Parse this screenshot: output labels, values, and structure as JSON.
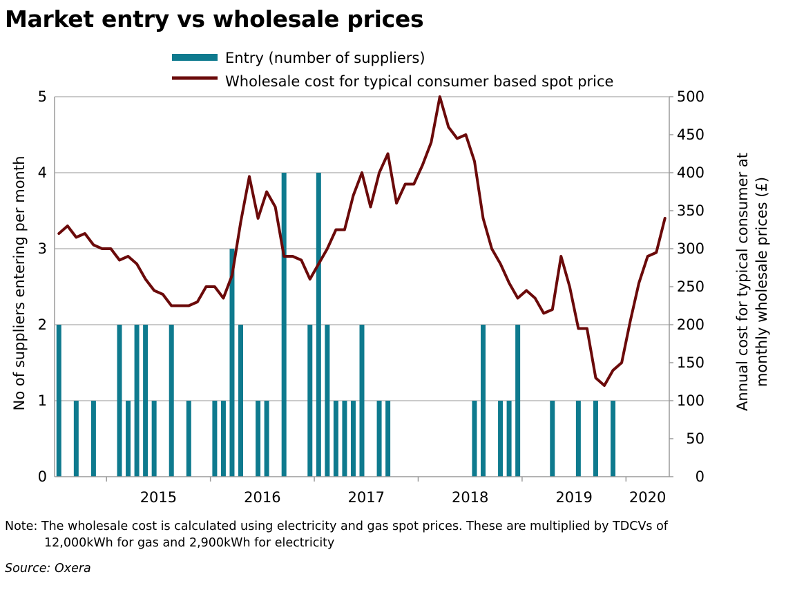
{
  "title": "Market entry vs wholesale prices",
  "note": {
    "label": "Note",
    "line1": ": The wholesale cost is calculated using electricity and gas spot prices. These are multiplied by TDCVs of",
    "line2": "12,000kWh for gas and 2,900kWh for electricity"
  },
  "source": "Source: Oxera",
  "colors": {
    "bars": "#0e7a8e",
    "line": "#6b0a0a",
    "grid": "#b8b8b8"
  },
  "chart_data": {
    "type": "bar+line",
    "xlabel": "",
    "ylabel_left": "No of suppliers entering per month",
    "ylabel_right_line1": "Annual cost for typical consumer at",
    "ylabel_right_line2": "monthly wholesale prices (£)",
    "ylim_left": [
      0,
      5
    ],
    "ylim_right": [
      0,
      500
    ],
    "yticks_left": [
      "0",
      "1",
      "2",
      "3",
      "4",
      "5"
    ],
    "yticks_right": [
      "0",
      "50",
      "100",
      "150",
      "200",
      "250",
      "300",
      "350",
      "400",
      "450",
      "500"
    ],
    "x_range": [
      "2014-07",
      "2020-05"
    ],
    "year_labels": [
      "2015",
      "2016",
      "2017",
      "2018",
      "2019",
      "2020"
    ],
    "legend": [
      "Entry (number of suppliers)",
      "Wholesale cost for typical consumer based spot price"
    ],
    "legend_position": "top-center",
    "series": [
      {
        "name": "Entry (number of suppliers)",
        "type": "bar",
        "axis": "left",
        "months": [
          "2014-07",
          "2014-08",
          "2014-09",
          "2014-10",
          "2014-11",
          "2014-12",
          "2015-01",
          "2015-02",
          "2015-03",
          "2015-04",
          "2015-05",
          "2015-06",
          "2015-07",
          "2015-08",
          "2015-09",
          "2015-10",
          "2015-11",
          "2015-12",
          "2016-01",
          "2016-02",
          "2016-03",
          "2016-04",
          "2016-05",
          "2016-06",
          "2016-07",
          "2016-08",
          "2016-09",
          "2016-10",
          "2016-11",
          "2016-12",
          "2017-01",
          "2017-02",
          "2017-03",
          "2017-04",
          "2017-05",
          "2017-06",
          "2017-07",
          "2017-08",
          "2017-09",
          "2017-10",
          "2017-11",
          "2017-12",
          "2018-01",
          "2018-02",
          "2018-03",
          "2018-04",
          "2018-05",
          "2018-06",
          "2018-07",
          "2018-08",
          "2018-09",
          "2018-10",
          "2018-11",
          "2018-12",
          "2019-01",
          "2019-02",
          "2019-03",
          "2019-04",
          "2019-05",
          "2019-06",
          "2019-07",
          "2019-08",
          "2019-09",
          "2019-10",
          "2019-11",
          "2019-12",
          "2020-01",
          "2020-02",
          "2020-03",
          "2020-04",
          "2020-05"
        ],
        "values": [
          2,
          0,
          1,
          0,
          1,
          0,
          0,
          2,
          1,
          2,
          2,
          1,
          0,
          2,
          0,
          1,
          0,
          0,
          1,
          1,
          3,
          2,
          0,
          1,
          1,
          0,
          4,
          0,
          0,
          2,
          4,
          2,
          1,
          1,
          1,
          2,
          0,
          1,
          1,
          0,
          0,
          0,
          0,
          0,
          0,
          0,
          0,
          0,
          1,
          2,
          0,
          1,
          1,
          2,
          0,
          0,
          0,
          1,
          0,
          0,
          1,
          0,
          1,
          0,
          1,
          0,
          0,
          0,
          0,
          0,
          0
        ]
      },
      {
        "name": "Wholesale cost for typical consumer based spot price",
        "type": "line",
        "axis": "right",
        "months": [
          "2014-07",
          "2014-08",
          "2014-09",
          "2014-10",
          "2014-11",
          "2014-12",
          "2015-01",
          "2015-02",
          "2015-03",
          "2015-04",
          "2015-05",
          "2015-06",
          "2015-07",
          "2015-08",
          "2015-09",
          "2015-10",
          "2015-11",
          "2015-12",
          "2016-01",
          "2016-02",
          "2016-03",
          "2016-04",
          "2016-05",
          "2016-06",
          "2016-07",
          "2016-08",
          "2016-09",
          "2016-10",
          "2016-11",
          "2016-12",
          "2017-01",
          "2017-02",
          "2017-03",
          "2017-04",
          "2017-05",
          "2017-06",
          "2017-07",
          "2017-08",
          "2017-09",
          "2017-10",
          "2017-11",
          "2017-12",
          "2018-01",
          "2018-02",
          "2018-03",
          "2018-04",
          "2018-05",
          "2018-06",
          "2018-07",
          "2018-08",
          "2018-09",
          "2018-10",
          "2018-11",
          "2018-12",
          "2019-01",
          "2019-02",
          "2019-03",
          "2019-04",
          "2019-05",
          "2019-06",
          "2019-07",
          "2019-08",
          "2019-09",
          "2019-10",
          "2019-11",
          "2019-12",
          "2020-01",
          "2020-02",
          "2020-03",
          "2020-04",
          "2020-05"
        ],
        "values": [
          320,
          330,
          315,
          320,
          305,
          300,
          300,
          285,
          290,
          280,
          260,
          245,
          240,
          225,
          225,
          225,
          230,
          250,
          250,
          235,
          265,
          335,
          395,
          340,
          375,
          355,
          290,
          290,
          285,
          260,
          280,
          300,
          325,
          325,
          370,
          400,
          355,
          400,
          425,
          360,
          385,
          385,
          410,
          440,
          500,
          460,
          445,
          450,
          415,
          340,
          300,
          280,
          255,
          235,
          245,
          235,
          215,
          220,
          290,
          250,
          195,
          195,
          130,
          120,
          140,
          150,
          205,
          255,
          290,
          295,
          340
        ]
      }
    ]
  }
}
